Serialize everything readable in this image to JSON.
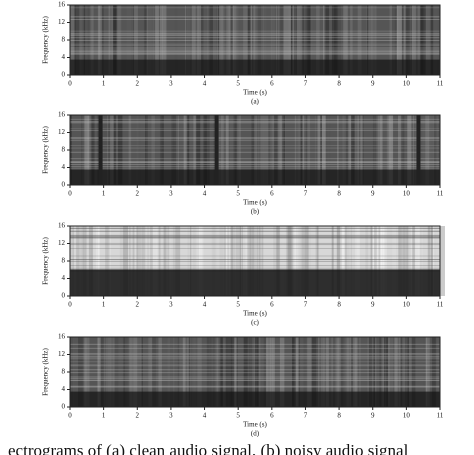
{
  "chart_data": [
    {
      "type": "spectrogram",
      "xlabel": "Time (s)",
      "ylabel": "Frequency (kHz)",
      "panel_label": "(a)",
      "xlim": [
        0,
        11
      ],
      "ylim": [
        0,
        16
      ],
      "xticks": [
        0,
        1,
        2,
        3,
        4,
        5,
        6,
        7,
        8,
        9,
        10,
        11
      ],
      "yticks": [
        0,
        4,
        8,
        12,
        16
      ]
    },
    {
      "type": "spectrogram",
      "xlabel": "Time (s)",
      "ylabel": "Frequency (kHz)",
      "panel_label": "(b)",
      "xlim": [
        0,
        11
      ],
      "ylim": [
        0,
        16
      ],
      "xticks": [
        0,
        1,
        2,
        3,
        4,
        5,
        6,
        7,
        8,
        9,
        10,
        11
      ],
      "yticks": [
        0,
        4,
        8,
        12,
        16
      ]
    },
    {
      "type": "spectrogram",
      "xlabel": "Time (s)",
      "ylabel": "Frequency (kHz)",
      "panel_label": "(c)",
      "xlim": [
        0,
        11
      ],
      "ylim": [
        0,
        16
      ],
      "xticks": [
        0,
        1,
        2,
        3,
        4,
        5,
        6,
        7,
        8,
        9,
        10,
        11
      ],
      "yticks": [
        0,
        4,
        8,
        12,
        16
      ]
    },
    {
      "type": "spectrogram",
      "xlabel": "Time (s)",
      "ylabel": "Frequency (kHz)",
      "panel_label": "(d)",
      "xlim": [
        0,
        11
      ],
      "ylim": [
        0,
        16
      ],
      "xticks": [
        0,
        1,
        2,
        3,
        4,
        5,
        6,
        7,
        8,
        9,
        10,
        11
      ],
      "yticks": [
        0,
        4,
        8,
        12,
        16
      ]
    }
  ],
  "caption": "ectrograms of (a) clean audio signal, (b) noisy audio signal"
}
